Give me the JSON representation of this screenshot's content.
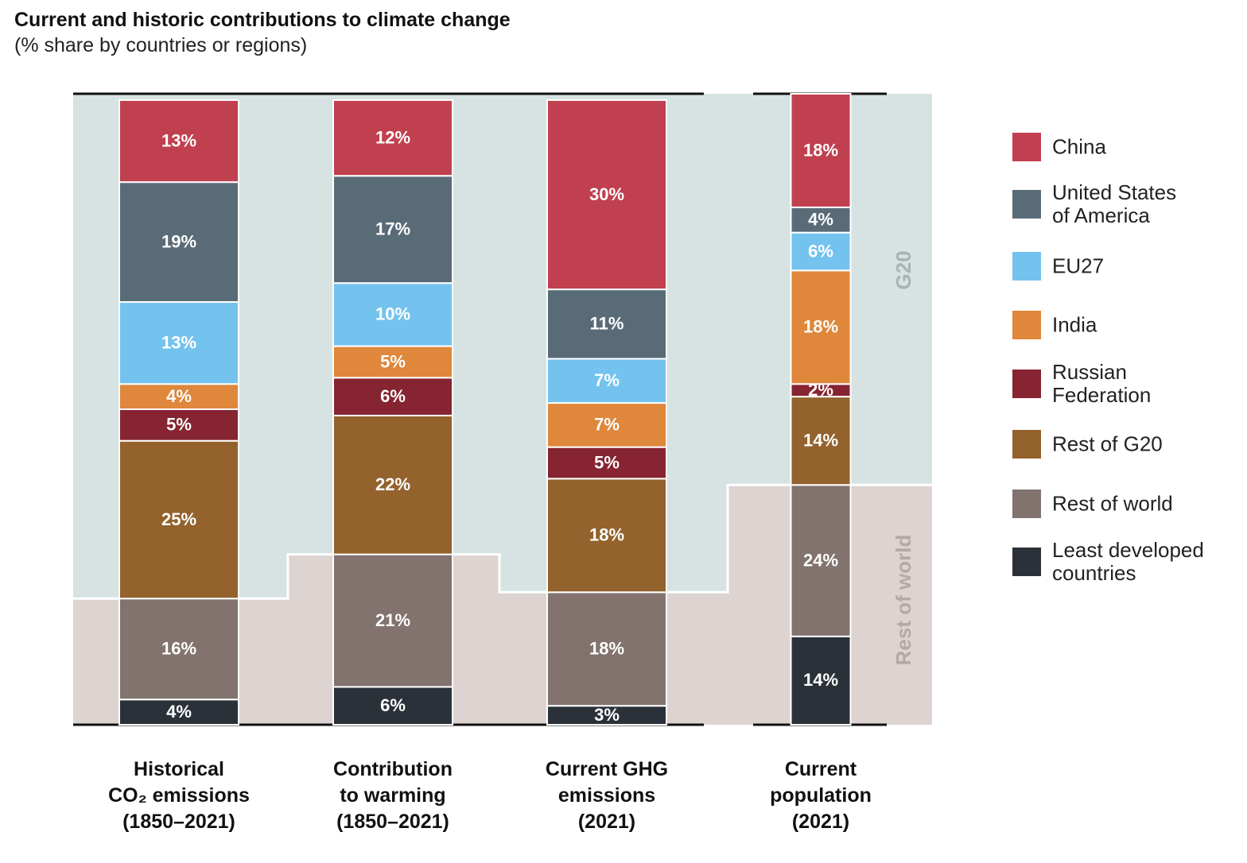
{
  "chart_data": {
    "type": "stacked-bar",
    "title": "Current and historic contributions to climate change",
    "subtitle": "(% share by countries or regions)",
    "categories": [
      "Historical\nCO₂ emissions\n(1850–2021)",
      "Contribution\nto warming\n(1850–2021)",
      "Current GHG\nemissions\n(2021)",
      "Current\npopulation\n(2021)"
    ],
    "group_labels": [
      "G20",
      "Rest of world"
    ],
    "ylim": [
      0,
      100
    ],
    "series": [
      {
        "name": "China",
        "color": "#c0404f",
        "values": [
          13,
          12,
          30,
          18
        ],
        "value_labels": [
          "13%",
          "12%",
          "30%",
          "18%"
        ]
      },
      {
        "name": "United States\nof America",
        "color": "#5a6b78",
        "values": [
          19,
          17,
          11,
          4
        ],
        "value_labels": [
          "19%",
          "17%",
          "11%",
          "4%"
        ]
      },
      {
        "name": "EU27",
        "color": "#74c3ee",
        "values": [
          13,
          10,
          7,
          6
        ],
        "value_labels": [
          "13%",
          "10%",
          "7%",
          "6%"
        ]
      },
      {
        "name": "India",
        "color": "#df873b",
        "values": [
          4,
          5,
          7,
          18
        ],
        "value_labels": [
          "4%",
          "5%",
          "7%",
          "18%"
        ]
      },
      {
        "name": "Russian\nFederation",
        "color": "#862432",
        "values": [
          5,
          6,
          5,
          2
        ],
        "value_labels": [
          "5%",
          "6%",
          "5%",
          "2%"
        ]
      },
      {
        "name": "Rest of G20",
        "color": "#93622d",
        "values": [
          25,
          22,
          18,
          14
        ],
        "value_labels": [
          "25%",
          "22%",
          "18%",
          "14%"
        ]
      },
      {
        "name": "Rest of world",
        "color": "#82736f",
        "values": [
          16,
          21,
          18,
          24
        ],
        "value_labels": [
          "16%",
          "21%",
          "18%",
          "24%"
        ]
      },
      {
        "name": "Least developed\ncountries",
        "color": "#2b3138",
        "values": [
          4,
          6,
          3,
          14
        ],
        "value_labels": [
          "4%",
          "6%",
          "3%",
          "14%"
        ]
      }
    ]
  }
}
